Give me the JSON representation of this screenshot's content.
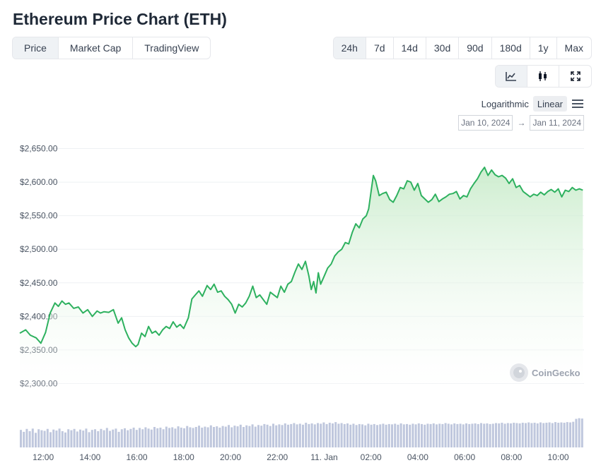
{
  "page": {
    "title": "Ethereum Price Chart (ETH)"
  },
  "tabs": [
    {
      "label": "Price",
      "active": true
    },
    {
      "label": "Market Cap",
      "active": false
    },
    {
      "label": "TradingView",
      "active": false
    }
  ],
  "ranges": [
    {
      "label": "24h",
      "active": true
    },
    {
      "label": "7d",
      "active": false
    },
    {
      "label": "14d",
      "active": false
    },
    {
      "label": "30d",
      "active": false
    },
    {
      "label": "90d",
      "active": false
    },
    {
      "label": "180d",
      "active": false
    },
    {
      "label": "1y",
      "active": false
    },
    {
      "label": "Max",
      "active": false
    }
  ],
  "view_buttons": [
    {
      "icon": "line-chart-icon",
      "active": true
    },
    {
      "icon": "candlestick-icon",
      "active": false
    },
    {
      "icon": "fullscreen-icon",
      "active": false
    }
  ],
  "scale": {
    "log_label": "Logarithmic",
    "linear_label": "Linear",
    "active": "Linear"
  },
  "date_range": {
    "from": "Jan 10, 2024",
    "arrow": "→",
    "to": "Jan 11, 2024"
  },
  "watermark": "CoinGecko",
  "colors": {
    "line": "#2eb15f",
    "fill_top": "#c7ebc9",
    "fill_bottom": "#ffffff",
    "volume": "#bfc7dd",
    "grid": "#eef0f3"
  },
  "chart_data": {
    "type": "area",
    "ylim": [
      2300,
      2650
    ],
    "yticks": [
      "$2,650.00",
      "$2,600.00",
      "$2,550.00",
      "$2,500.00",
      "$2,450.00",
      "$2,400.00",
      "$2,350.00",
      "$2,300.00"
    ],
    "ytick_values": [
      2650,
      2600,
      2550,
      2500,
      2450,
      2400,
      2350,
      2300
    ],
    "xlim": [
      11.0,
      35.1
    ],
    "xticks": [
      "12:00",
      "14:00",
      "16:00",
      "18:00",
      "20:00",
      "22:00",
      "11. Jan",
      "02:00",
      "04:00",
      "06:00",
      "08:00",
      "10:00"
    ],
    "xtick_values": [
      12,
      14,
      16,
      18,
      20,
      22,
      24,
      26,
      28,
      30,
      32,
      34
    ],
    "series": [
      {
        "x": [
          11.0,
          11.25,
          11.45,
          11.7,
          11.9,
          12.1,
          12.3,
          12.5,
          12.65,
          12.8,
          12.95,
          13.1,
          13.3,
          13.5,
          13.7,
          13.9,
          14.1,
          14.3,
          14.45,
          14.6,
          14.8,
          15.0,
          15.2,
          15.35,
          15.5,
          15.65,
          15.8,
          15.95,
          16.05,
          16.2,
          16.35,
          16.5,
          16.65,
          16.8,
          16.95,
          17.1,
          17.25,
          17.4,
          17.55,
          17.7,
          17.85,
          18.0,
          18.2,
          18.35,
          18.5,
          18.65,
          18.8,
          19.0,
          19.15,
          19.3,
          19.45,
          19.6,
          19.75,
          19.9,
          20.05,
          20.2,
          20.35,
          20.5,
          20.65,
          20.8,
          20.95,
          21.1,
          21.25,
          21.4,
          21.55,
          21.7,
          21.85,
          22.0,
          22.15,
          22.3,
          22.45,
          22.6,
          22.75,
          22.9,
          23.05,
          23.2,
          23.35,
          23.45,
          23.55,
          23.65,
          23.75,
          23.85,
          24.0,
          24.15,
          24.3,
          24.45,
          24.6,
          24.75,
          24.9,
          25.05,
          25.2,
          25.35,
          25.5,
          25.65,
          25.8,
          25.9,
          26.0,
          26.1,
          26.2,
          26.35,
          26.5,
          26.65,
          26.8,
          26.95,
          27.1,
          27.25,
          27.4,
          27.55,
          27.7,
          27.85,
          28.0,
          28.15,
          28.3,
          28.45,
          28.6,
          28.75,
          28.9,
          29.05,
          29.2,
          29.35,
          29.5,
          29.65,
          29.8,
          29.95,
          30.1,
          30.25,
          30.4,
          30.55,
          30.7,
          30.85,
          31.0,
          31.15,
          31.3,
          31.45,
          31.6,
          31.75,
          31.9,
          32.05,
          32.2,
          32.35,
          32.5,
          32.65,
          32.8,
          32.95,
          33.1,
          33.25,
          33.4,
          33.55,
          33.7,
          33.85,
          34.0,
          34.15,
          34.3,
          34.45,
          34.6,
          34.75,
          34.9,
          35.05
        ],
        "y": [
          2375,
          2380,
          2372,
          2368,
          2360,
          2376,
          2405,
          2420,
          2415,
          2423,
          2418,
          2420,
          2412,
          2414,
          2405,
          2410,
          2400,
          2408,
          2405,
          2407,
          2406,
          2410,
          2390,
          2398,
          2380,
          2368,
          2360,
          2355,
          2358,
          2375,
          2370,
          2385,
          2375,
          2378,
          2372,
          2380,
          2385,
          2382,
          2392,
          2384,
          2388,
          2382,
          2398,
          2426,
          2432,
          2438,
          2430,
          2446,
          2440,
          2448,
          2436,
          2438,
          2430,
          2425,
          2418,
          2405,
          2418,
          2414,
          2420,
          2430,
          2445,
          2428,
          2432,
          2425,
          2418,
          2436,
          2432,
          2428,
          2445,
          2436,
          2448,
          2452,
          2466,
          2478,
          2470,
          2482,
          2460,
          2440,
          2452,
          2435,
          2465,
          2448,
          2460,
          2472,
          2478,
          2490,
          2496,
          2500,
          2510,
          2508,
          2525,
          2538,
          2532,
          2545,
          2550,
          2560,
          2585,
          2610,
          2602,
          2580,
          2583,
          2585,
          2574,
          2570,
          2580,
          2592,
          2590,
          2602,
          2600,
          2588,
          2598,
          2580,
          2575,
          2570,
          2574,
          2582,
          2571,
          2575,
          2578,
          2582,
          2583,
          2586,
          2575,
          2580,
          2578,
          2590,
          2598,
          2605,
          2615,
          2622,
          2610,
          2618,
          2611,
          2608,
          2610,
          2606,
          2598,
          2605,
          2592,
          2595,
          2586,
          2582,
          2578,
          2582,
          2580,
          2585,
          2581,
          2586,
          2589,
          2585,
          2590,
          2578,
          2588,
          2586,
          2592,
          2588,
          2590,
          2588
        ]
      }
    ],
    "volume": {
      "start": 11.0,
      "end": 35.1,
      "values": [
        0.54,
        0.48,
        0.57,
        0.5,
        0.58,
        0.45,
        0.56,
        0.53,
        0.51,
        0.57,
        0.47,
        0.55,
        0.52,
        0.58,
        0.5,
        0.46,
        0.56,
        0.53,
        0.57,
        0.49,
        0.55,
        0.52,
        0.58,
        0.47,
        0.54,
        0.56,
        0.5,
        0.57,
        0.53,
        0.6,
        0.51,
        0.55,
        0.58,
        0.48,
        0.56,
        0.59,
        0.53,
        0.57,
        0.61,
        0.54,
        0.6,
        0.56,
        0.62,
        0.58,
        0.55,
        0.63,
        0.59,
        0.61,
        0.56,
        0.64,
        0.6,
        0.62,
        0.58,
        0.65,
        0.61,
        0.59,
        0.66,
        0.62,
        0.6,
        0.63,
        0.67,
        0.61,
        0.64,
        0.62,
        0.68,
        0.63,
        0.65,
        0.61,
        0.66,
        0.64,
        0.69,
        0.62,
        0.67,
        0.65,
        0.7,
        0.63,
        0.68,
        0.66,
        0.71,
        0.64,
        0.69,
        0.67,
        0.72,
        0.7,
        0.66,
        0.73,
        0.68,
        0.71,
        0.69,
        0.74,
        0.7,
        0.72,
        0.75,
        0.71,
        0.73,
        0.7,
        0.76,
        0.72,
        0.74,
        0.71,
        0.75,
        0.73,
        0.77,
        0.72,
        0.76,
        0.74,
        0.78,
        0.73,
        0.75,
        0.72,
        0.74,
        0.7,
        0.73,
        0.69,
        0.72,
        0.71,
        0.68,
        0.73,
        0.7,
        0.72,
        0.69,
        0.71,
        0.73,
        0.7,
        0.72,
        0.71,
        0.73,
        0.7,
        0.74,
        0.71,
        0.72,
        0.7,
        0.73,
        0.71,
        0.74,
        0.72,
        0.7,
        0.73,
        0.72,
        0.74,
        0.71,
        0.73,
        0.72,
        0.75,
        0.73,
        0.71,
        0.74,
        0.72,
        0.73,
        0.71,
        0.74,
        0.72,
        0.73,
        0.74,
        0.72,
        0.75,
        0.73,
        0.74,
        0.72,
        0.73,
        0.75,
        0.74,
        0.76,
        0.73,
        0.75,
        0.74,
        0.76,
        0.75,
        0.74,
        0.76,
        0.75,
        0.77,
        0.75,
        0.76,
        0.74,
        0.77,
        0.75,
        0.76,
        0.77,
        0.75,
        0.78,
        0.76,
        0.77,
        0.76,
        0.78,
        0.77,
        0.79,
        0.88,
        0.9,
        0.89
      ]
    }
  }
}
